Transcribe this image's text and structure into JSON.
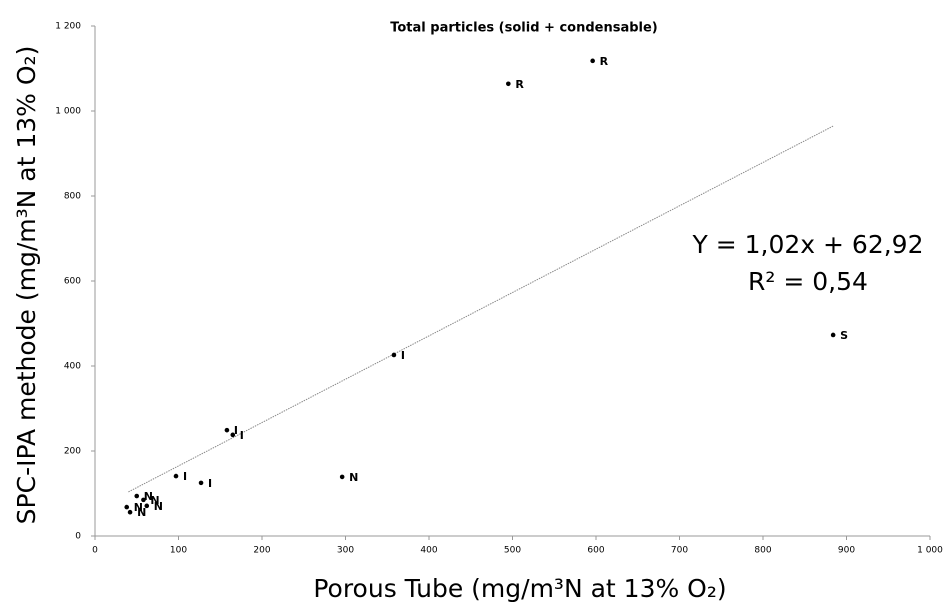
{
  "chart_data": {
    "type": "scatter",
    "title": "Total particles (solid + condensable)",
    "x_label": "Porous Tube (mg/m³N at 13% O₂)",
    "y_label": "SPC-IPA methode (mg/m³N at 13% O₂)",
    "annotations": [
      "Y = 1,02x + 62,92",
      "R² = 0,54"
    ],
    "x": [
      596,
      495,
      884,
      358,
      158,
      165,
      97,
      127,
      296,
      50,
      58,
      62,
      38,
      42
    ],
    "values": [
      1118,
      1064,
      473,
      426,
      249,
      238,
      141,
      125,
      139,
      94,
      85,
      71,
      68,
      56
    ],
    "point_labels": [
      "R",
      "R",
      "S",
      "I",
      "I",
      "I",
      "I",
      "I",
      "N",
      "N",
      "N",
      "N",
      "N",
      "N"
    ],
    "color": "#000000",
    "trendline": {
      "slope": 1.02,
      "intercept": 62.92,
      "x": [
        40,
        885
      ],
      "color": "#888888"
    },
    "xlim": [
      0,
      1000
    ],
    "xticks": [
      0,
      100,
      200,
      300,
      400,
      500,
      600,
      700,
      800,
      900,
      {
        "value": 1000,
        "label": "1 000"
      }
    ],
    "ylim": [
      0,
      1200
    ],
    "yticks": [
      0,
      200,
      400,
      600,
      800,
      {
        "value": 1000,
        "label": "1 000"
      },
      {
        "value": 1200,
        "label": "1 200"
      }
    ],
    "grid": false
  }
}
